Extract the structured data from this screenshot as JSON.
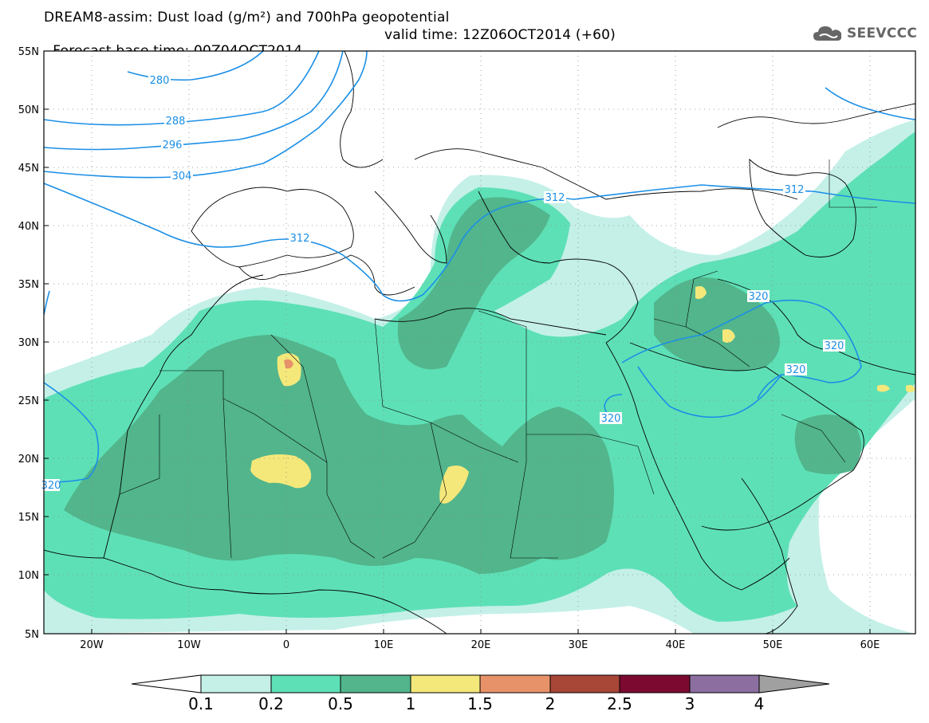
{
  "title": {
    "line1": "DREAM8-assim: Dust load (g/m²) and 700hPa geopotential",
    "line2_left": "Forecast base time: 00Z04OCT2014",
    "line2_right": "valid time: 12Z06OCT2014 (+60)"
  },
  "logo": {
    "text": "SEEVCCC",
    "icon": "cloud-icon"
  },
  "axes": {
    "lat_labels": [
      "55N",
      "50N",
      "45N",
      "40N",
      "35N",
      "30N",
      "25N",
      "20N",
      "15N",
      "10N",
      "5N"
    ],
    "lon_labels": [
      "20W",
      "10W",
      "0",
      "10E",
      "20E",
      "30E",
      "40E",
      "50E",
      "60E"
    ]
  },
  "contours": {
    "color": "#1b8fe6",
    "labels": [
      "280",
      "288",
      "296",
      "304",
      "312",
      "312",
      "312",
      "320",
      "320",
      "320",
      "320",
      "320"
    ]
  },
  "colorbar": {
    "labels": [
      "0.1",
      "0.2",
      "0.5",
      "1",
      "1.5",
      "2",
      "2.5",
      "3",
      "4"
    ],
    "colors": [
      "#c4f0e8",
      "#5ee0b6",
      "#52b58c",
      "#f5e87a",
      "#e8926a",
      "#a84638",
      "#7c0a30",
      "#8c6fa0"
    ],
    "under_color": "#ffffff",
    "over_color": "#a0a0a0"
  },
  "dust_colors": {
    "lightest": "#c4f0e8",
    "light": "#5ee0b6",
    "medium": "#52b58c",
    "high": "#f5e87a",
    "higher": "#e8926a"
  }
}
